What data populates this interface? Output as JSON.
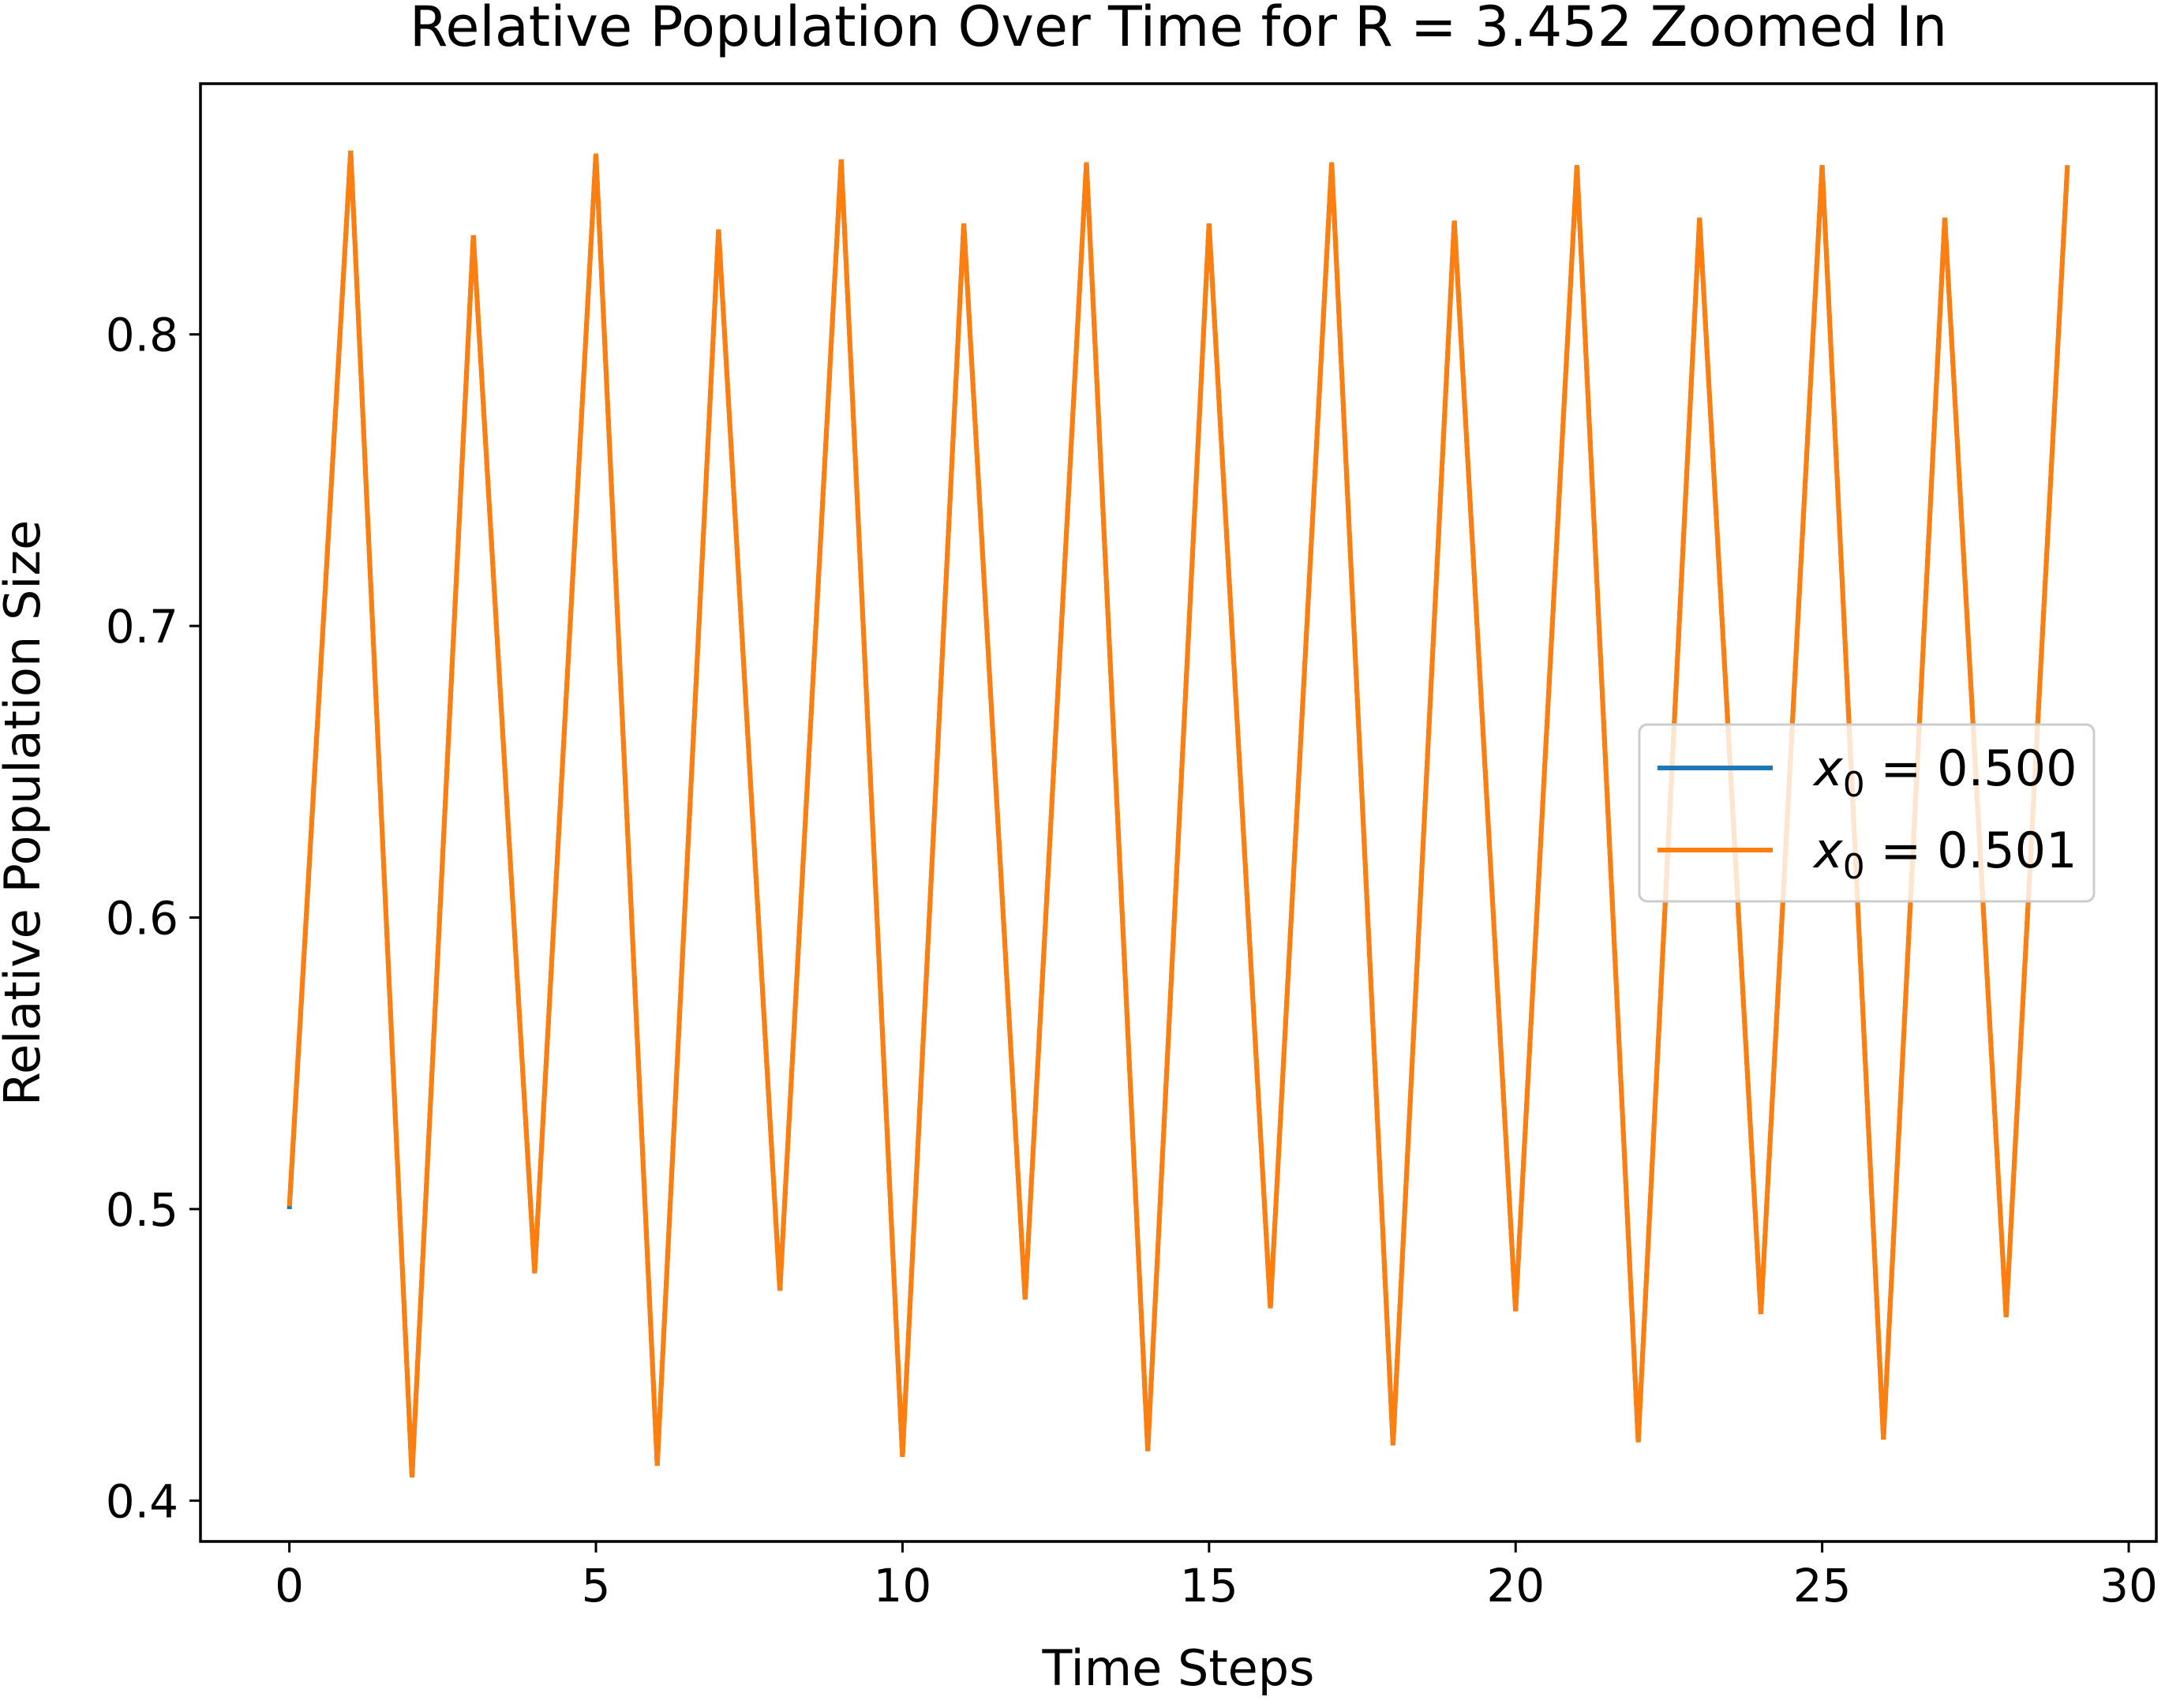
{
  "chart_data": {
    "type": "line",
    "title": "Relative Population Over Time for R = 3.452 Zoomed In",
    "xlabel": "Time Steps",
    "ylabel": "Relative Population Size",
    "xlim": [
      -1.45,
      30.45
    ],
    "ylim": [
      0.386,
      0.886
    ],
    "xticks": [
      0,
      5,
      10,
      15,
      20,
      25,
      30
    ],
    "yticks": [
      0.4,
      0.5,
      0.6,
      0.7,
      0.8
    ],
    "xtick_labels": [
      "0",
      "5",
      "10",
      "15",
      "20",
      "25",
      "30"
    ],
    "ytick_labels": [
      "0.4",
      "0.5",
      "0.6",
      "0.7",
      "0.8"
    ],
    "grid": false,
    "legend_position": "center-right",
    "x": [
      0,
      1,
      2,
      3,
      4,
      5,
      6,
      7,
      8,
      9,
      10,
      11,
      12,
      13,
      14,
      15,
      16,
      17,
      18,
      19,
      20,
      21,
      22,
      23,
      24,
      25,
      26,
      27,
      28,
      29
    ],
    "series": [
      {
        "name_prefix": "x",
        "name_sub": "0",
        "name_suffix": " = 0.500",
        "color": "#1f77b4",
        "values": [
          0.5,
          0.863,
          0.408,
          0.834,
          0.478,
          0.862,
          0.412,
          0.836,
          0.472,
          0.86,
          0.415,
          0.838,
          0.469,
          0.859,
          0.417,
          0.838,
          0.466,
          0.859,
          0.419,
          0.839,
          0.465,
          0.858,
          0.42,
          0.84,
          0.464,
          0.858,
          0.421,
          0.84,
          0.463,
          0.858
        ]
      },
      {
        "name_prefix": "x",
        "name_sub": "0",
        "name_suffix": " = 0.501",
        "color": "#ff7f0e",
        "values": [
          0.501,
          0.863,
          0.408,
          0.834,
          0.478,
          0.862,
          0.412,
          0.836,
          0.472,
          0.86,
          0.415,
          0.838,
          0.469,
          0.859,
          0.417,
          0.838,
          0.466,
          0.859,
          0.419,
          0.839,
          0.465,
          0.858,
          0.42,
          0.84,
          0.464,
          0.858,
          0.421,
          0.84,
          0.463,
          0.858
        ]
      }
    ]
  }
}
